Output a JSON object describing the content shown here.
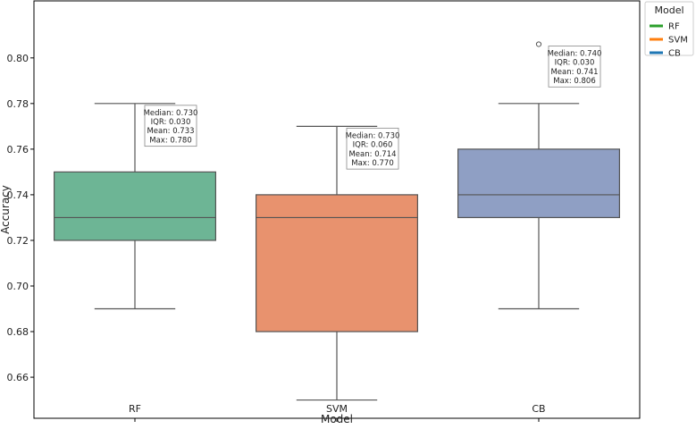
{
  "chart_data": {
    "type": "box",
    "title": "",
    "xlabel": "Model",
    "ylabel": "Accuracy",
    "ylim": [
      0.642,
      0.825
    ],
    "yticks": [
      "0.66",
      "0.68",
      "0.70",
      "0.72",
      "0.74",
      "0.76",
      "0.78",
      "0.80"
    ],
    "categories": [
      "RF",
      "SVM",
      "CB"
    ],
    "boxes": [
      {
        "name": "RF",
        "whisker_low": 0.69,
        "q1": 0.72,
        "median": 0.73,
        "q3": 0.75,
        "whisker_high": 0.78,
        "outliers": [],
        "color": "#6db595"
      },
      {
        "name": "SVM",
        "whisker_low": 0.65,
        "q1": 0.68,
        "median": 0.73,
        "q3": 0.74,
        "whisker_high": 0.77,
        "outliers": [],
        "color": "#e8926e"
      },
      {
        "name": "CB",
        "whisker_low": 0.69,
        "q1": 0.73,
        "median": 0.74,
        "q3": 0.76,
        "whisker_high": 0.78,
        "outliers": [
          0.806
        ],
        "color": "#8f9fc4"
      }
    ],
    "annotations": [
      {
        "lines": [
          "Median: 0.730",
          "IQR: 0.030",
          "Mean: 0.733",
          "Max: 0.780"
        ]
      },
      {
        "lines": [
          "Median: 0.730",
          "IQR: 0.060",
          "Mean: 0.714",
          "Max: 0.770"
        ]
      },
      {
        "lines": [
          "Median: 0.740",
          "IQR: 0.030",
          "Mean: 0.741",
          "Max: 0.806"
        ]
      }
    ],
    "legend": {
      "title": "Model",
      "position": "outside-top-right",
      "entries": [
        {
          "label": "RF",
          "color": "#2ca02c"
        },
        {
          "label": "SVM",
          "color": "#ff7f0e"
        },
        {
          "label": "CB",
          "color": "#1f77b4"
        }
      ]
    }
  }
}
